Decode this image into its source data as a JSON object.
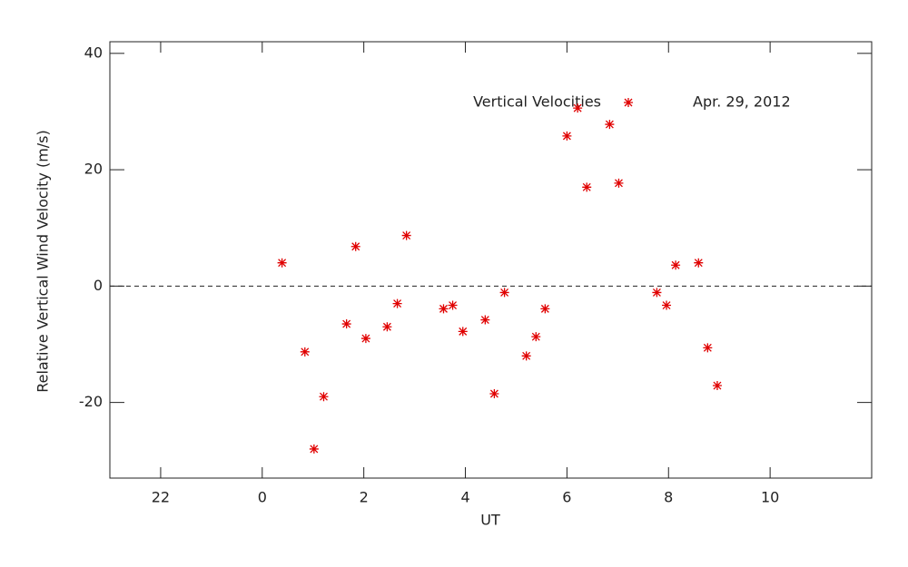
{
  "chart_data": {
    "type": "scatter",
    "x_label": "UT",
    "y_label": "Relative Vertical Wind Velocity (m/s)",
    "annotation": "Apr. 29, 2012",
    "xlim": [
      -3,
      12
    ],
    "xticks": [
      {
        "value": -2,
        "label": "22"
      },
      0,
      2,
      4,
      6,
      8,
      10
    ],
    "ylim": [
      -33,
      42
    ],
    "yticks": [
      -20,
      0,
      20,
      40
    ],
    "zero_line": true,
    "series": [
      {
        "name": "Vertical Velocities",
        "color": "#e00000",
        "x": [
          0.39,
          0.84,
          1.02,
          1.21,
          1.66,
          1.84,
          2.04,
          2.46,
          2.66,
          2.84,
          3.57,
          3.75,
          3.95,
          4.39,
          4.57,
          4.77,
          5.2,
          5.39,
          5.57,
          6.0,
          6.21,
          6.39,
          6.84,
          7.02,
          7.77,
          7.96,
          8.14,
          8.59,
          8.77,
          8.96
        ],
        "values": [
          4.0,
          -11.3,
          -28.0,
          -19.0,
          -6.5,
          6.8,
          -9.0,
          -7.0,
          -3.0,
          8.7,
          -3.9,
          -3.3,
          -7.8,
          -5.8,
          -18.5,
          -1.1,
          -12.0,
          -8.7,
          -3.9,
          25.8,
          30.6,
          17.0,
          27.8,
          17.7,
          -1.1,
          -3.3,
          3.6,
          4.0,
          -10.6,
          -17.1
        ]
      }
    ]
  }
}
